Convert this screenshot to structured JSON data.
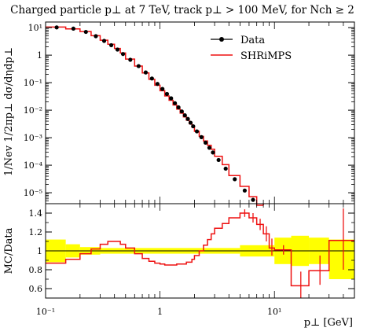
{
  "chart_data": {
    "type": "line",
    "title": "Charged particle p⊥ at 7 TeV, track p⊥ > 100 MeV, for Nch ≥ 2",
    "xlabel": "p⊥ [GeV]",
    "ylabel_main": "1/Nev 1/2πp⊥ dσ/dηdp⊥",
    "ylabel_ratio": "MC/Data",
    "x_scale": "log",
    "y_scale_main": "log",
    "xlim": [
      0.1,
      50
    ],
    "ylim_main": [
      4e-06,
      16
    ],
    "ylim_ratio": [
      0.5,
      1.5
    ],
    "legend_position": "top-right",
    "x_ticks": [
      {
        "value": 0.1,
        "label": "10⁻¹"
      },
      {
        "value": 1,
        "label": "1"
      },
      {
        "value": 10,
        "label": "10¹"
      }
    ],
    "y_ticks_main": [
      {
        "value": 10,
        "label": "10¹"
      },
      {
        "value": 1,
        "label": "1"
      },
      {
        "value": 0.1,
        "label": "10⁻¹"
      },
      {
        "value": 0.01,
        "label": "10⁻²"
      },
      {
        "value": 0.001,
        "label": "10⁻³"
      },
      {
        "value": 0.0001,
        "label": "10⁻⁴"
      },
      {
        "value": 1e-05,
        "label": "10⁻⁵"
      }
    ],
    "y_ticks_ratio": [
      {
        "value": 1.4,
        "label": "1.4"
      },
      {
        "value": 1.2,
        "label": "1.2"
      },
      {
        "value": 1.0,
        "label": "1"
      },
      {
        "value": 0.8,
        "label": "0.8"
      },
      {
        "value": 0.6,
        "label": "0.6"
      }
    ],
    "series": [
      {
        "name": "Data",
        "color": "#000000",
        "style": "markers",
        "points": [
          {
            "x": 0.125,
            "y": 10.2
          },
          {
            "x": 0.175,
            "y": 9.2
          },
          {
            "x": 0.225,
            "y": 7.0
          },
          {
            "x": 0.275,
            "y": 4.9
          },
          {
            "x": 0.325,
            "y": 3.3
          },
          {
            "x": 0.375,
            "y": 2.3
          },
          {
            "x": 0.425,
            "y": 1.6
          },
          {
            "x": 0.475,
            "y": 1.1
          },
          {
            "x": 0.55,
            "y": 0.68
          },
          {
            "x": 0.65,
            "y": 0.4
          },
          {
            "x": 0.75,
            "y": 0.235
          },
          {
            "x": 0.85,
            "y": 0.142
          },
          {
            "x": 0.95,
            "y": 0.09
          },
          {
            "x": 1.05,
            "y": 0.059
          },
          {
            "x": 1.15,
            "y": 0.039
          },
          {
            "x": 1.25,
            "y": 0.027
          },
          {
            "x": 1.35,
            "y": 0.018
          },
          {
            "x": 1.45,
            "y": 0.0127
          },
          {
            "x": 1.55,
            "y": 0.009
          },
          {
            "x": 1.65,
            "y": 0.0065
          },
          {
            "x": 1.75,
            "y": 0.0048
          },
          {
            "x": 1.85,
            "y": 0.0035
          },
          {
            "x": 1.95,
            "y": 0.0026
          },
          {
            "x": 2.1,
            "y": 0.0017
          },
          {
            "x": 2.3,
            "y": 0.00105
          },
          {
            "x": 2.5,
            "y": 0.00066
          },
          {
            "x": 2.7,
            "y": 0.00043
          },
          {
            "x": 2.9,
            "y": 0.00029
          },
          {
            "x": 3.25,
            "y": 0.000155
          },
          {
            "x": 3.75,
            "y": 7.5e-05
          },
          {
            "x": 4.5,
            "y": 3.1e-05
          },
          {
            "x": 5.5,
            "y": 1.2e-05
          },
          {
            "x": 6.5,
            "y": 5.5e-06
          },
          {
            "x": 7.5,
            "y": 2.7e-06
          }
        ]
      },
      {
        "name": "SHRiMPS",
        "color": "#ee1111",
        "style": "histogram",
        "bins": [
          {
            "lo": 0.1,
            "hi": 0.15,
            "y": 10.5
          },
          {
            "lo": 0.15,
            "hi": 0.2,
            "y": 9.0
          },
          {
            "lo": 0.2,
            "hi": 0.25,
            "y": 7.2
          },
          {
            "lo": 0.25,
            "hi": 0.3,
            "y": 5.1
          },
          {
            "lo": 0.3,
            "hi": 0.35,
            "y": 3.5
          },
          {
            "lo": 0.35,
            "hi": 0.4,
            "y": 2.5
          },
          {
            "lo": 0.4,
            "hi": 0.45,
            "y": 1.75
          },
          {
            "lo": 0.45,
            "hi": 0.5,
            "y": 1.2
          },
          {
            "lo": 0.5,
            "hi": 0.6,
            "y": 0.72
          },
          {
            "lo": 0.6,
            "hi": 0.7,
            "y": 0.4
          },
          {
            "lo": 0.7,
            "hi": 0.8,
            "y": 0.225
          },
          {
            "lo": 0.8,
            "hi": 0.9,
            "y": 0.132
          },
          {
            "lo": 0.9,
            "hi": 1.0,
            "y": 0.081
          },
          {
            "lo": 1.0,
            "hi": 1.1,
            "y": 0.051
          },
          {
            "lo": 1.1,
            "hi": 1.2,
            "y": 0.033
          },
          {
            "lo": 1.2,
            "hi": 1.3,
            "y": 0.023
          },
          {
            "lo": 1.3,
            "hi": 1.4,
            "y": 0.0155
          },
          {
            "lo": 1.4,
            "hi": 1.5,
            "y": 0.0109
          },
          {
            "lo": 1.5,
            "hi": 1.6,
            "y": 0.0078
          },
          {
            "lo": 1.6,
            "hi": 1.7,
            "y": 0.0057
          },
          {
            "lo": 1.7,
            "hi": 1.8,
            "y": 0.0043
          },
          {
            "lo": 1.8,
            "hi": 1.9,
            "y": 0.0032
          },
          {
            "lo": 1.9,
            "hi": 2.0,
            "y": 0.0024
          },
          {
            "lo": 2.0,
            "hi": 2.2,
            "y": 0.0017
          },
          {
            "lo": 2.2,
            "hi": 2.4,
            "y": 0.00112
          },
          {
            "lo": 2.4,
            "hi": 2.6,
            "y": 0.00076
          },
          {
            "lo": 2.6,
            "hi": 2.8,
            "y": 0.00053
          },
          {
            "lo": 2.8,
            "hi": 3.0,
            "y": 0.00038
          },
          {
            "lo": 3.0,
            "hi": 3.5,
            "y": 0.00021
          },
          {
            "lo": 3.5,
            "hi": 4.0,
            "y": 0.000105
          },
          {
            "lo": 4.0,
            "hi": 5.0,
            "y": 4.2e-05
          },
          {
            "lo": 5.0,
            "hi": 6.0,
            "y": 1.7e-05
          },
          {
            "lo": 6.0,
            "hi": 7.0,
            "y": 7.2e-06
          },
          {
            "lo": 7.0,
            "hi": 8.0,
            "y": 3.5e-06
          }
        ]
      }
    ],
    "ratio": {
      "reference_line": 1.0,
      "band_color": "#ffff00",
      "data_band": [
        {
          "lo": 0.1,
          "hi": 0.15,
          "y0": 0.88,
          "y1": 1.12
        },
        {
          "lo": 0.15,
          "hi": 0.2,
          "y0": 0.93,
          "y1": 1.07
        },
        {
          "lo": 0.2,
          "hi": 0.3,
          "y0": 0.96,
          "y1": 1.04
        },
        {
          "lo": 0.3,
          "hi": 5.0,
          "y0": 0.97,
          "y1": 1.03
        },
        {
          "lo": 5.0,
          "hi": 10.0,
          "y0": 0.94,
          "y1": 1.06
        },
        {
          "lo": 10.0,
          "hi": 14.0,
          "y0": 0.86,
          "y1": 1.14
        },
        {
          "lo": 14.0,
          "hi": 20.0,
          "y0": 0.84,
          "y1": 1.16
        },
        {
          "lo": 20.0,
          "hi": 30.0,
          "y0": 0.86,
          "y1": 1.14
        },
        {
          "lo": 30.0,
          "hi": 50.0,
          "y0": 0.7,
          "y1": 1.12
        }
      ],
      "mc_bins": [
        {
          "lo": 0.1,
          "hi": 0.15,
          "y": 0.87
        },
        {
          "lo": 0.15,
          "hi": 0.2,
          "y": 0.91
        },
        {
          "lo": 0.2,
          "hi": 0.25,
          "y": 0.97
        },
        {
          "lo": 0.25,
          "hi": 0.3,
          "y": 1.02
        },
        {
          "lo": 0.3,
          "hi": 0.35,
          "y": 1.07
        },
        {
          "lo": 0.35,
          "hi": 0.45,
          "y": 1.1
        },
        {
          "lo": 0.45,
          "hi": 0.5,
          "y": 1.07
        },
        {
          "lo": 0.5,
          "hi": 0.6,
          "y": 1.03
        },
        {
          "lo": 0.6,
          "hi": 0.7,
          "y": 0.97
        },
        {
          "lo": 0.7,
          "hi": 0.8,
          "y": 0.92
        },
        {
          "lo": 0.8,
          "hi": 0.9,
          "y": 0.89
        },
        {
          "lo": 0.9,
          "hi": 1.0,
          "y": 0.87
        },
        {
          "lo": 1.0,
          "hi": 1.1,
          "y": 0.86
        },
        {
          "lo": 1.1,
          "hi": 1.4,
          "y": 0.85
        },
        {
          "lo": 1.4,
          "hi": 1.7,
          "y": 0.86
        },
        {
          "lo": 1.7,
          "hi": 1.9,
          "y": 0.88
        },
        {
          "lo": 1.9,
          "hi": 2.0,
          "y": 0.91
        },
        {
          "lo": 2.0,
          "hi": 2.2,
          "y": 0.95
        },
        {
          "lo": 2.2,
          "hi": 2.4,
          "y": 1.0
        },
        {
          "lo": 2.4,
          "hi": 2.6,
          "y": 1.06
        },
        {
          "lo": 2.6,
          "hi": 2.8,
          "y": 1.12
        },
        {
          "lo": 2.8,
          "hi": 3.0,
          "y": 1.18
        },
        {
          "lo": 3.0,
          "hi": 3.5,
          "y": 1.24
        },
        {
          "lo": 3.5,
          "hi": 4.0,
          "y": 1.29
        },
        {
          "lo": 4.0,
          "hi": 5.0,
          "y": 1.35
        },
        {
          "lo": 5.0,
          "hi": 6.0,
          "y": 1.4
        },
        {
          "lo": 6.0,
          "hi": 7.0,
          "y": 1.35
        },
        {
          "lo": 7.0,
          "hi": 8.0,
          "y": 1.28
        },
        {
          "lo": 8.0,
          "hi": 9.0,
          "y": 1.18
        },
        {
          "lo": 9.0,
          "hi": 10.0,
          "y": 1.03
        },
        {
          "lo": 10.0,
          "hi": 14.0,
          "y": 1.01
        },
        {
          "lo": 14.0,
          "hi": 20.0,
          "y": 0.63
        },
        {
          "lo": 20.0,
          "hi": 30.0,
          "y": 0.79
        },
        {
          "lo": 30.0,
          "hi": 50.0,
          "y": 1.11
        }
      ],
      "mc_errors": [
        {
          "x": 5.5,
          "lo": 1.36,
          "hi": 1.44
        },
        {
          "x": 6.5,
          "lo": 1.3,
          "hi": 1.4
        },
        {
          "x": 7.5,
          "lo": 1.22,
          "hi": 1.34
        },
        {
          "x": 8.5,
          "lo": 1.1,
          "hi": 1.26
        },
        {
          "x": 9.5,
          "lo": 0.95,
          "hi": 1.13
        },
        {
          "x": 12.0,
          "lo": 0.96,
          "hi": 1.06
        },
        {
          "x": 17.0,
          "lo": 0.5,
          "hi": 0.78
        },
        {
          "x": 25.0,
          "lo": 0.64,
          "hi": 0.95
        },
        {
          "x": 40.0,
          "lo": 0.8,
          "hi": 1.45
        }
      ]
    }
  }
}
